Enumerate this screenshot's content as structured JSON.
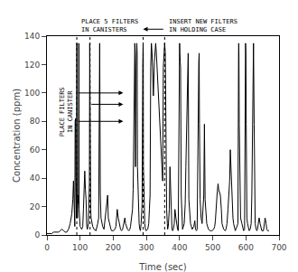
{
  "chart_data": {
    "type": "line",
    "xlabel": "Time (sec)",
    "ylabel": "Concentration (ppm)",
    "xlim": [
      0,
      700
    ],
    "ylim": [
      0,
      140
    ],
    "xticks": [
      0,
      100,
      200,
      300,
      400,
      500,
      600,
      700
    ],
    "yticks": [
      0,
      20,
      40,
      60,
      80,
      100,
      120,
      140
    ],
    "grid": false,
    "color": "#000000",
    "x": [
      0,
      5,
      10,
      15,
      20,
      25,
      30,
      35,
      40,
      45,
      50,
      55,
      60,
      65,
      70,
      75,
      78,
      80,
      82,
      83,
      84,
      85,
      86,
      87,
      88,
      89,
      90,
      90.5,
      91,
      92,
      94,
      95,
      96,
      96.5,
      97,
      98,
      99,
      100,
      105,
      108,
      110,
      112,
      114,
      116,
      118,
      120,
      122,
      125,
      127,
      128,
      129,
      129.5,
      130,
      131,
      132,
      133,
      135,
      138,
      142,
      148,
      153,
      156,
      159,
      159.5,
      160,
      161,
      163,
      165,
      168,
      172,
      175,
      178,
      180,
      183,
      185,
      188,
      190,
      193,
      195,
      200,
      205,
      208,
      210,
      212,
      215,
      218,
      220,
      222,
      225,
      228,
      230,
      232,
      235,
      237,
      240,
      243,
      247,
      250,
      252,
      255,
      258,
      260,
      263,
      265,
      266,
      267,
      269,
      271,
      272,
      273,
      275,
      278,
      280,
      282,
      284,
      287,
      289,
      290,
      290.5,
      291,
      293,
      295,
      297,
      299,
      304,
      307,
      309,
      311,
      313,
      315,
      317,
      319,
      321,
      324,
      326,
      328,
      330,
      332,
      334,
      336,
      339,
      342,
      344,
      347,
      349,
      351,
      353,
      355,
      357,
      359,
      361,
      363,
      364,
      366,
      369,
      371,
      373,
      375,
      377,
      379,
      381,
      384,
      386,
      389,
      391,
      394,
      396,
      399,
      400,
      401,
      402,
      403,
      405,
      407,
      409,
      414,
      417,
      419,
      421,
      424,
      426,
      428,
      431,
      433,
      438,
      443,
      446,
      448,
      451,
      453,
      458,
      459,
      460,
      462,
      465,
      468,
      473,
      475,
      477,
      480,
      482,
      487,
      492,
      498,
      503,
      506,
      508,
      513,
      516,
      518,
      523,
      526,
      528,
      533,
      536,
      538,
      540,
      543,
      546,
      548,
      551,
      553,
      556,
      558,
      561,
      563,
      566,
      568,
      570,
      573,
      576,
      578,
      578.5,
      579,
      580,
      582,
      584,
      588,
      591,
      593,
      596,
      598,
      599,
      600,
      601,
      602,
      603,
      605,
      608,
      610,
      613,
      616,
      618,
      621,
      623,
      625,
      626,
      628,
      631,
      633,
      635,
      638,
      640,
      643,
      646,
      648,
      653,
      658,
      661,
      663,
      666,
      670
    ],
    "values": [
      1,
      1,
      1,
      1,
      2,
      2,
      2,
      2,
      3,
      4,
      3,
      2,
      2,
      4,
      8,
      15,
      25,
      38,
      22,
      12,
      6,
      80,
      82,
      38,
      22,
      12,
      135,
      130,
      18,
      12,
      28,
      22,
      135,
      128,
      18,
      10,
      8,
      6,
      4,
      6,
      18,
      35,
      45,
      32,
      25,
      6,
      4,
      8,
      32,
      36,
      135,
      88,
      40,
      30,
      18,
      12,
      8,
      6,
      4,
      3,
      8,
      12,
      135,
      88,
      55,
      28,
      12,
      8,
      6,
      4,
      10,
      15,
      20,
      28,
      12,
      8,
      6,
      4,
      3,
      3,
      4,
      6,
      12,
      18,
      12,
      8,
      6,
      4,
      3,
      4,
      6,
      8,
      12,
      8,
      6,
      4,
      3,
      4,
      6,
      12,
      18,
      32,
      120,
      135,
      128,
      48,
      118,
      135,
      128,
      48,
      22,
      8,
      4,
      3,
      8,
      22,
      120,
      135,
      128,
      48,
      18,
      8,
      4,
      3,
      4,
      8,
      18,
      28,
      118,
      135,
      128,
      112,
      98,
      122,
      128,
      135,
      128,
      118,
      108,
      98,
      78,
      68,
      58,
      48,
      38,
      118,
      128,
      135,
      128,
      38,
      18,
      8,
      4,
      6,
      18,
      48,
      28,
      8,
      4,
      3,
      4,
      8,
      18,
      12,
      8,
      4,
      3,
      128,
      135,
      128,
      122,
      118,
      28,
      8,
      4,
      8,
      22,
      48,
      78,
      122,
      128,
      25,
      12,
      8,
      4,
      6,
      10,
      4,
      3,
      4,
      122,
      128,
      78,
      25,
      12,
      8,
      28,
      78,
      25,
      12,
      8,
      4,
      3,
      3,
      4,
      6,
      10,
      28,
      36,
      32,
      28,
      18,
      8,
      4,
      3,
      3,
      4,
      8,
      18,
      28,
      38,
      60,
      36,
      22,
      12,
      8,
      4,
      3,
      4,
      6,
      8,
      130,
      135,
      128,
      78,
      28,
      12,
      8,
      4,
      3,
      4,
      128,
      135,
      128,
      78,
      28,
      12,
      8,
      4,
      3,
      4,
      8,
      28,
      78,
      135,
      78,
      28,
      8,
      4,
      3,
      4,
      8,
      12,
      8,
      4,
      3,
      3,
      12,
      8,
      4,
      3,
      3
    ],
    "vlines": [
      90,
      130,
      290,
      355
    ],
    "arrows": [
      {
        "x0": 90,
        "x1": 230,
        "y": 100
      },
      {
        "x0": 130,
        "x1": 230,
        "y": 92
      },
      {
        "x0": 90,
        "x1": 230,
        "y": 80
      }
    ],
    "top_arrow": {
      "from": 355,
      "to": 290
    },
    "annotations": [
      {
        "text": [
          "PLACE 5 FILTERS",
          "IN CANISTERS"
        ],
        "x": 90
      },
      {
        "text": [
          "INSERT NEW FILTERS",
          "IN HOLDING CASE"
        ],
        "x": 355
      },
      {
        "text": [
          "PLACE FILTERS",
          "IN CANISTER"
        ],
        "x": 57,
        "y": 87
      }
    ]
  }
}
